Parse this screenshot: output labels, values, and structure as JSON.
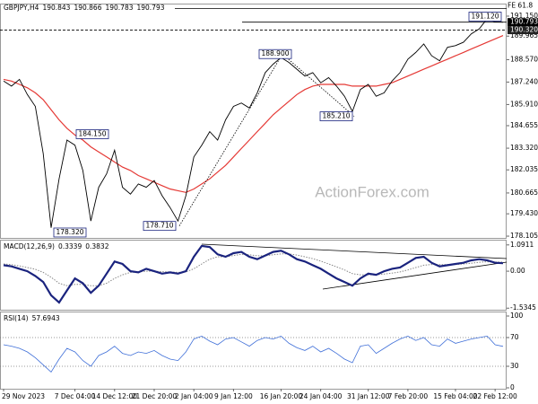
{
  "chart_data": [
    {
      "type": "line",
      "title": "GBPJPY,H4",
      "ohlc": [
        190.843,
        190.866,
        190.783,
        190.793
      ],
      "categories": [
        "29 Nov 2023",
        null,
        null,
        null,
        null,
        null,
        null,
        null,
        null,
        "7 Dec 04:00",
        null,
        null,
        null,
        null,
        "14 Dec 12:00",
        null,
        null,
        null,
        null,
        "21 Dec 20:00",
        null,
        null,
        null,
        null,
        "2 Jan 04:00",
        null,
        null,
        null,
        null,
        "9 Jan 12:00",
        null,
        null,
        null,
        null,
        null,
        "16 Jan 20:00",
        null,
        null,
        null,
        null,
        "24 Jan 04:00",
        null,
        null,
        null,
        null,
        null,
        "31 Jan 12:00",
        null,
        null,
        null,
        null,
        "7 Feb 20:00",
        null,
        null,
        null,
        null,
        null,
        "15 Feb 04:00",
        null,
        null,
        null,
        null,
        "22 Feb 12:00",
        null
      ],
      "series": [
        {
          "color": "#000000",
          "values": [
            187.3,
            187.0,
            187.4,
            186.5,
            185.8,
            183.0,
            178.6,
            181.5,
            183.8,
            183.5,
            182.0,
            179.0,
            181.0,
            181.8,
            183.2,
            181.0,
            180.6,
            181.2,
            181.0,
            181.4,
            180.5,
            179.8,
            179.0,
            180.5,
            182.8,
            183.5,
            184.3,
            183.8,
            185.0,
            185.8,
            186.0,
            185.7,
            186.6,
            187.8,
            188.3,
            188.7,
            188.4,
            188.0,
            187.6,
            187.8,
            187.2,
            187.5,
            187.0,
            186.4,
            185.5,
            186.8,
            187.1,
            186.4,
            186.6,
            187.3,
            187.8,
            188.6,
            189.0,
            189.5,
            188.8,
            188.5,
            189.3,
            189.4,
            189.6,
            190.1,
            190.4,
            191.0,
            190.8,
            190.793
          ]
        },
        {
          "color": "#e53935",
          "values": [
            187.4,
            187.3,
            187.1,
            186.9,
            186.6,
            186.2,
            185.6,
            185.0,
            184.5,
            184.1,
            183.8,
            183.4,
            183.1,
            182.8,
            182.5,
            182.2,
            182.0,
            181.7,
            181.5,
            181.3,
            181.1,
            180.9,
            180.8,
            180.7,
            180.9,
            181.2,
            181.5,
            181.9,
            182.3,
            182.8,
            183.3,
            183.8,
            184.3,
            184.8,
            185.3,
            185.7,
            186.1,
            186.5,
            186.8,
            187.0,
            187.1,
            187.1,
            187.1,
            187.1,
            187.0,
            187.0,
            187.0,
            187.0,
            187.1,
            187.2,
            187.4,
            187.6,
            187.8,
            188.0,
            188.2,
            188.4,
            188.6,
            188.8,
            189.0,
            189.2,
            189.4,
            189.6,
            189.8,
            190.0
          ]
        }
      ],
      "ylim": [
        178.0,
        191.84
      ],
      "yticks": [
        {
          "value": 191.15,
          "label": "191.150"
        },
        189.965,
        {
          "value": 188.57,
          "label": "188.570"
        },
        {
          "value": 187.24,
          "label": "187.240"
        },
        {
          "value": 185.91,
          "label": "185.910"
        },
        184.655,
        {
          "value": 183.32,
          "label": "183.320"
        },
        182.035,
        180.665,
        {
          "value": 179.43,
          "label": "179.430"
        },
        178.105
      ],
      "price_labels": [
        190.793,
        {
          "value": 190.32,
          "label": "190.320"
        }
      ],
      "fe_line": {
        "label": "FE 61.8",
        "value": 191.6
      },
      "annotations": [
        {
          "value": 191.12,
          "label": "191.120"
        },
        {
          "value": 188.9,
          "label": "188.900"
        },
        {
          "value": 184.15,
          "label": "184.150"
        },
        {
          "value": 185.21,
          "label": "185.210"
        },
        {
          "value": 178.32,
          "label": "178.320"
        },
        {
          "value": 178.71,
          "label": "178.710"
        }
      ],
      "watermark": "ActionForex.com"
    },
    {
      "type": "macd",
      "title": "MACD(12,26,9)",
      "readout": [
        0.3339,
        0.3832
      ],
      "series": [
        {
          "color": "#1a237e",
          "values": [
            0.25,
            0.2,
            0.1,
            0.0,
            -0.2,
            -0.45,
            -1.0,
            -1.3,
            -0.8,
            -0.3,
            -0.5,
            -0.9,
            -0.6,
            -0.1,
            0.4,
            0.3,
            0.0,
            -0.05,
            0.1,
            0.0,
            -0.1,
            -0.05,
            -0.1,
            0.0,
            0.6,
            1.05,
            1.0,
            0.7,
            0.6,
            0.75,
            0.8,
            0.6,
            0.5,
            0.65,
            0.8,
            0.85,
            0.7,
            0.5,
            0.4,
            0.25,
            0.1,
            -0.1,
            -0.3,
            -0.45,
            -0.6,
            -0.3,
            -0.1,
            -0.15,
            0.0,
            0.1,
            0.15,
            0.35,
            0.55,
            0.6,
            0.35,
            0.2,
            0.25,
            0.3,
            0.35,
            0.45,
            0.5,
            0.45,
            0.35,
            0.33
          ]
        },
        {
          "color": "#888888",
          "dash": true,
          "values": [
            0.3,
            0.27,
            0.22,
            0.15,
            0.08,
            -0.05,
            -0.25,
            -0.5,
            -0.6,
            -0.55,
            -0.55,
            -0.6,
            -0.6,
            -0.5,
            -0.3,
            -0.15,
            -0.05,
            -0.03,
            0.0,
            0.0,
            -0.02,
            -0.03,
            -0.05,
            -0.03,
            0.1,
            0.3,
            0.5,
            0.6,
            0.6,
            0.65,
            0.7,
            0.68,
            0.64,
            0.64,
            0.68,
            0.72,
            0.72,
            0.67,
            0.6,
            0.52,
            0.42,
            0.3,
            0.18,
            0.05,
            -0.1,
            -0.15,
            -0.15,
            -0.15,
            -0.12,
            -0.08,
            -0.03,
            0.05,
            0.15,
            0.25,
            0.28,
            0.27,
            0.27,
            0.28,
            0.3,
            0.33,
            0.37,
            0.39,
            0.38,
            0.38
          ]
        }
      ],
      "ylim": [
        -1.6,
        1.27
      ],
      "yticks": [
        1.0911,
        {
          "value": 0,
          "label": "0.00"
        },
        -1.5345
      ]
    },
    {
      "type": "rsi",
      "title": "RSI(14)",
      "readout": 57.6943,
      "series": [
        {
          "color": "#3f6fd8",
          "values": [
            60,
            58,
            55,
            50,
            42,
            32,
            22,
            40,
            55,
            50,
            38,
            30,
            45,
            50,
            58,
            48,
            45,
            50,
            48,
            52,
            45,
            40,
            38,
            50,
            68,
            72,
            65,
            60,
            68,
            70,
            64,
            58,
            66,
            70,
            68,
            72,
            62,
            56,
            52,
            58,
            50,
            55,
            48,
            40,
            35,
            58,
            60,
            48,
            55,
            62,
            68,
            72,
            66,
            70,
            60,
            58,
            68,
            62,
            65,
            68,
            70,
            72,
            60,
            57.6943
          ]
        }
      ],
      "ylim": [
        0,
        100
      ],
      "yticks": [
        100,
        70,
        30,
        0
      ]
    }
  ]
}
